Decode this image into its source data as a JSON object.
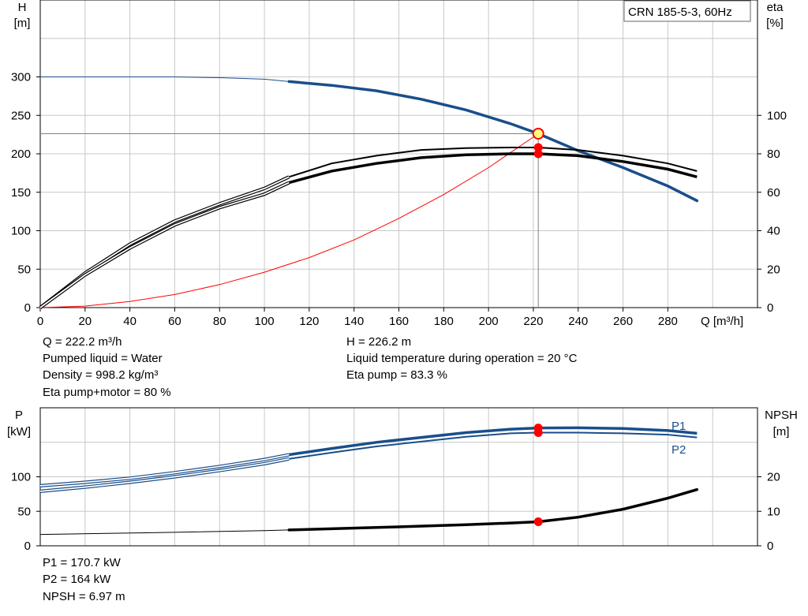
{
  "title_box": "CRN 185-5-3, 60Hz",
  "colors": {
    "head_curve": "#1a4e8a",
    "power_curve": "#1a4e8a",
    "eta_curve": "#000000",
    "npsh_curve": "#000000",
    "system_curve": "#ff0000",
    "marker": "#ff0000",
    "duty_marker_fill": "#ffff80",
    "grid": "#c8c8c8",
    "legend_text": "#1a4e8a"
  },
  "info_top": {
    "q": "Q = 222.2 m³/h",
    "liquid": "Pumped liquid = Water",
    "density": "Density = 998.2 kg/m³",
    "eta_pm": "Eta pump+motor = 80 %",
    "h": "H = 226.2 m",
    "temp": "Liquid temperature during operation = 20 °C",
    "eta_pump": "Eta pump = 83.3 %"
  },
  "info_bottom": {
    "p1": "P1 = 170.7 kW",
    "p2": "P2 = 164 kW",
    "npsh": "NPSH = 6.97 m"
  },
  "chart_data": [
    {
      "type": "line",
      "xlabel": "Q [m³/h]",
      "ylabel": [
        "H",
        "[m]"
      ],
      "y2label": [
        "eta",
        "[%]"
      ],
      "xlim": [
        0,
        320
      ],
      "ylim": [
        0,
        400
      ],
      "y2lim": [
        0,
        160
      ],
      "xticks": [
        0,
        20,
        40,
        60,
        80,
        100,
        120,
        140,
        160,
        180,
        200,
        220,
        240,
        260,
        280
      ],
      "yticks": [
        0,
        50,
        100,
        150,
        200,
        250,
        300
      ],
      "y2ticks": [
        0,
        20,
        40,
        60,
        80,
        100
      ],
      "grid": true,
      "duty_point": {
        "q": 222.2,
        "h": 226.2,
        "eta_pump": 83.3,
        "eta_pump_motor": 80
      },
      "series": [
        {
          "key": "head",
          "axis": "left",
          "points": [
            [
              0,
              300
            ],
            [
              20,
              300
            ],
            [
              40,
              300
            ],
            [
              60,
              300
            ],
            [
              80,
              299
            ],
            [
              100,
              297
            ],
            [
              111,
              294
            ],
            [
              130,
              289
            ],
            [
              150,
              282
            ],
            [
              170,
              271
            ],
            [
              190,
              257
            ],
            [
              210,
              239
            ],
            [
              222.2,
              226.2
            ],
            [
              240,
              204
            ],
            [
              260,
              182
            ],
            [
              280,
              158
            ],
            [
              293,
              139
            ]
          ]
        },
        {
          "key": "eta_pump",
          "axis": "right",
          "points": [
            [
              0,
              0
            ],
            [
              20,
              18
            ],
            [
              40,
              33
            ],
            [
              60,
              45
            ],
            [
              80,
              54
            ],
            [
              100,
              62
            ],
            [
              111,
              68
            ],
            [
              130,
              75
            ],
            [
              150,
              79
            ],
            [
              170,
              82
            ],
            [
              190,
              83
            ],
            [
              210,
              83.3
            ],
            [
              222.2,
              83.3
            ],
            [
              240,
              82
            ],
            [
              260,
              79
            ],
            [
              280,
              75
            ],
            [
              293,
              71
            ]
          ]
        },
        {
          "key": "eta_pump_motor",
          "axis": "right",
          "points": [
            [
              0,
              0
            ],
            [
              20,
              17
            ],
            [
              40,
              31
            ],
            [
              60,
              43
            ],
            [
              80,
              52
            ],
            [
              100,
              59
            ],
            [
              111,
              65
            ],
            [
              130,
              71
            ],
            [
              150,
              75
            ],
            [
              170,
              78
            ],
            [
              190,
              79.5
            ],
            [
              210,
              80
            ],
            [
              222.2,
              80
            ],
            [
              240,
              79
            ],
            [
              260,
              76
            ],
            [
              280,
              72
            ],
            [
              293,
              68
            ]
          ]
        },
        {
          "key": "system",
          "axis": "left",
          "points": [
            [
              0,
              0
            ],
            [
              20,
              2
            ],
            [
              40,
              8
            ],
            [
              60,
              17
            ],
            [
              80,
              30
            ],
            [
              100,
              46
            ],
            [
              120,
              65
            ],
            [
              140,
              88
            ],
            [
              160,
              116
            ],
            [
              180,
              147
            ],
            [
              200,
              182
            ],
            [
              222.2,
              226.2
            ]
          ]
        }
      ]
    },
    {
      "type": "line",
      "ylabel": [
        "P",
        "[kW]"
      ],
      "y2label": [
        "NPSH",
        "[m]"
      ],
      "xlim": [
        0,
        320
      ],
      "ylim": [
        0,
        200
      ],
      "y2lim": [
        0,
        40
      ],
      "yticks": [
        0,
        50,
        100
      ],
      "y2ticks": [
        0,
        10,
        20
      ],
      "grid": true,
      "series": [
        {
          "name": "P1",
          "key": "p1",
          "axis": "left",
          "points": [
            [
              0,
              87
            ],
            [
              20,
              92
            ],
            [
              40,
              98
            ],
            [
              60,
              106
            ],
            [
              80,
              115
            ],
            [
              100,
              125
            ],
            [
              111,
              132
            ],
            [
              130,
              141
            ],
            [
              150,
              150
            ],
            [
              170,
              157
            ],
            [
              190,
              164
            ],
            [
              210,
              169
            ],
            [
              222.2,
              170.7
            ],
            [
              240,
              171
            ],
            [
              260,
              170
            ],
            [
              280,
              167
            ],
            [
              293,
              163
            ]
          ]
        },
        {
          "name": "P2",
          "key": "p2",
          "axis": "left",
          "points": [
            [
              0,
              79
            ],
            [
              20,
              85
            ],
            [
              40,
              92
            ],
            [
              60,
              100
            ],
            [
              80,
              109
            ],
            [
              100,
              119
            ],
            [
              111,
              126
            ],
            [
              130,
              135
            ],
            [
              150,
              144
            ],
            [
              170,
              151
            ],
            [
              190,
              158
            ],
            [
              210,
              163
            ],
            [
              222.2,
              164
            ],
            [
              240,
              164
            ],
            [
              260,
              163
            ],
            [
              280,
              161
            ],
            [
              293,
              157
            ]
          ]
        },
        {
          "key": "npsh",
          "axis": "right",
          "points": [
            [
              0,
              3.3
            ],
            [
              50,
              3.8
            ],
            [
              100,
              4.4
            ],
            [
              111,
              4.6
            ],
            [
              150,
              5.3
            ],
            [
              190,
              6.1
            ],
            [
              210,
              6.6
            ],
            [
              222.2,
              6.97
            ],
            [
              240,
              8.3
            ],
            [
              260,
              10.6
            ],
            [
              280,
              13.8
            ],
            [
              293,
              16.3
            ]
          ]
        }
      ]
    }
  ]
}
